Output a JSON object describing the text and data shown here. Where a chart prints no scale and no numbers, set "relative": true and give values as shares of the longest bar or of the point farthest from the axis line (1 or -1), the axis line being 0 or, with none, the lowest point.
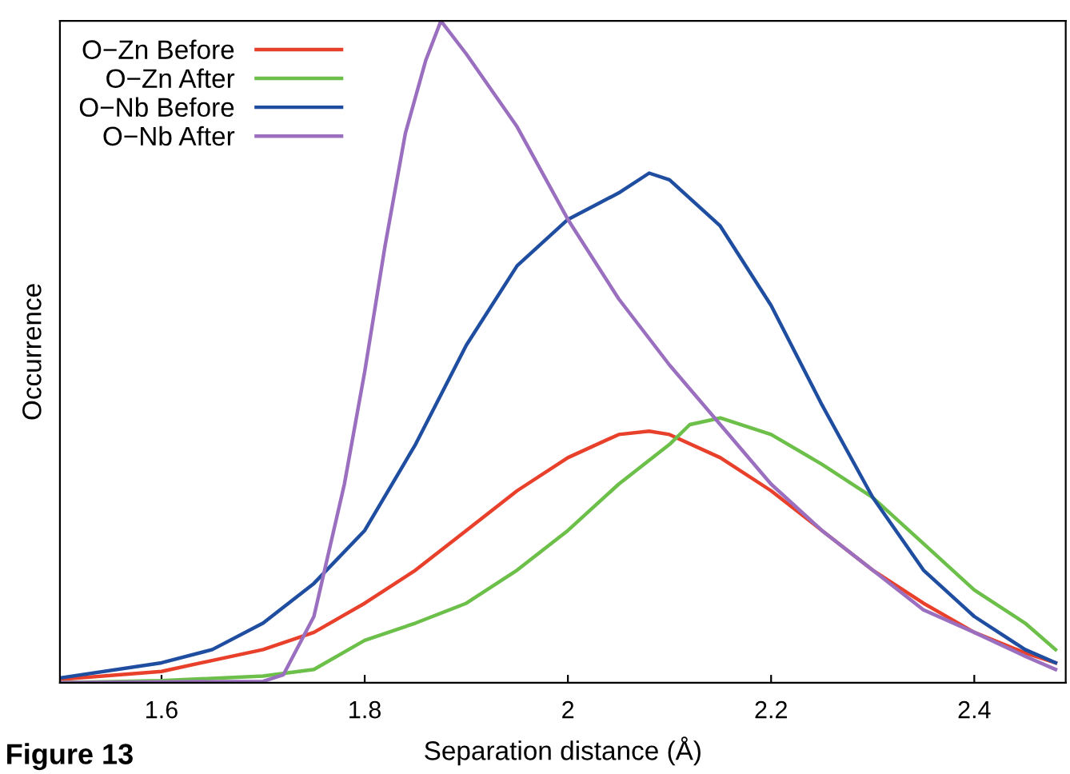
{
  "chart_data": {
    "type": "line",
    "relative": true,
    "xlabel": "Separation distance (Å)",
    "ylabel": "Occurrence",
    "xlim": [
      1.5,
      2.49
    ],
    "xticks": [
      1.6,
      1.8,
      2,
      2.2,
      2.4
    ],
    "legend": "top left",
    "grid": false,
    "annotations": [
      "Figure 13"
    ],
    "series": [
      {
        "name": "O−Zn Before",
        "color": "#e8402a",
        "x": [
          1.5,
          1.6,
          1.7,
          1.75,
          1.8,
          1.85,
          1.9,
          1.95,
          2.0,
          2.05,
          2.08,
          2.1,
          2.15,
          2.2,
          2.25,
          2.3,
          2.35,
          2.4,
          2.45,
          2.48
        ],
        "values": [
          0.005,
          0.017,
          0.05,
          0.076,
          0.12,
          0.17,
          0.23,
          0.29,
          0.34,
          0.375,
          0.38,
          0.375,
          0.34,
          0.29,
          0.23,
          0.17,
          0.12,
          0.076,
          0.045,
          0.03
        ]
      },
      {
        "name": "O−Zn After",
        "color": "#6cc04a",
        "x": [
          1.5,
          1.6,
          1.7,
          1.75,
          1.8,
          1.85,
          1.9,
          1.95,
          2.0,
          2.05,
          2.1,
          2.12,
          2.15,
          2.2,
          2.25,
          2.3,
          2.35,
          2.4,
          2.45,
          2.48
        ],
        "values": [
          0,
          0.003,
          0.01,
          0.02,
          0.064,
          0.09,
          0.12,
          0.17,
          0.23,
          0.3,
          0.36,
          0.39,
          0.4,
          0.375,
          0.33,
          0.28,
          0.21,
          0.14,
          0.09,
          0.05
        ]
      },
      {
        "name": "O−Nb Before",
        "color": "#1f4ea1",
        "x": [
          1.5,
          1.6,
          1.65,
          1.7,
          1.75,
          1.8,
          1.85,
          1.9,
          1.95,
          2.0,
          2.05,
          2.08,
          2.1,
          2.15,
          2.2,
          2.25,
          2.3,
          2.35,
          2.4,
          2.45,
          2.48
        ],
        "values": [
          0.007,
          0.03,
          0.05,
          0.09,
          0.15,
          0.23,
          0.36,
          0.51,
          0.63,
          0.7,
          0.74,
          0.77,
          0.76,
          0.69,
          0.57,
          0.42,
          0.28,
          0.17,
          0.1,
          0.05,
          0.03
        ]
      },
      {
        "name": "O−Nb After",
        "color": "#9b6fc0",
        "x": [
          1.5,
          1.7,
          1.72,
          1.75,
          1.78,
          1.8,
          1.82,
          1.84,
          1.86,
          1.875,
          1.9,
          1.95,
          2.0,
          2.05,
          2.1,
          2.15,
          2.2,
          2.25,
          2.3,
          2.35,
          2.4,
          2.45,
          2.48
        ],
        "values": [
          0,
          0.002,
          0.012,
          0.1,
          0.3,
          0.47,
          0.66,
          0.83,
          0.94,
          1.0,
          0.95,
          0.84,
          0.7,
          0.58,
          0.48,
          0.39,
          0.3,
          0.23,
          0.17,
          0.11,
          0.076,
          0.04,
          0.02
        ]
      }
    ]
  }
}
